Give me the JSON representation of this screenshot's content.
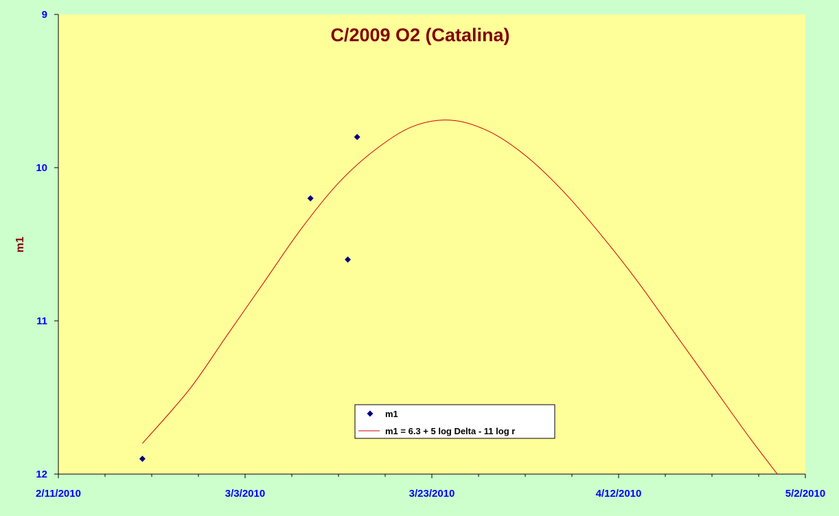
{
  "colors": {
    "background": "#ccffcc",
    "plot_area": "#ffff99",
    "title": "#800000",
    "axis_label": "#800000",
    "tick_label": "#0000ff",
    "marker": "#000080",
    "fit_line": "#cc0000"
  },
  "chart_data": {
    "type": "scatter",
    "title": "C/2009 O2 (Catalina)",
    "xlabel": "",
    "ylabel": "m1",
    "x_type": "date",
    "xlim": [
      "2010-02-11",
      "2010-05-02"
    ],
    "ylim": [
      9,
      12
    ],
    "y_inverted": true,
    "y_ticks": [
      "9",
      "10",
      "11",
      "12"
    ],
    "x_ticks": [
      "2/11/2010",
      "3/3/2010",
      "3/23/2010",
      "4/12/2010",
      "5/2/2010"
    ],
    "grid": false,
    "legend_position": "bottom-center",
    "series": [
      {
        "name": "m1",
        "kind": "points",
        "marker": "diamond",
        "points": [
          {
            "x": "2010-02-20",
            "y": 11.9
          },
          {
            "x": "2010-03-10",
            "y": 10.2
          },
          {
            "x": "2010-03-14",
            "y": 10.6
          },
          {
            "x": "2010-03-15",
            "y": 9.8
          }
        ]
      },
      {
        "name": "m1 = 6.3 + 5 log Delta - 11 log r",
        "kind": "line",
        "points": [
          {
            "x": "2010-02-20",
            "y": 11.8
          },
          {
            "x": "2010-02-25",
            "y": 11.45
          },
          {
            "x": "2010-03-01",
            "y": 11.1
          },
          {
            "x": "2010-03-05",
            "y": 10.75
          },
          {
            "x": "2010-03-09",
            "y": 10.4
          },
          {
            "x": "2010-03-13",
            "y": 10.1
          },
          {
            "x": "2010-03-17",
            "y": 9.88
          },
          {
            "x": "2010-03-21",
            "y": 9.73
          },
          {
            "x": "2010-03-25",
            "y": 9.69
          },
          {
            "x": "2010-03-29",
            "y": 9.76
          },
          {
            "x": "2010-04-02",
            "y": 9.92
          },
          {
            "x": "2010-04-06",
            "y": 10.15
          },
          {
            "x": "2010-04-10",
            "y": 10.43
          },
          {
            "x": "2010-04-14",
            "y": 10.74
          },
          {
            "x": "2010-04-18",
            "y": 11.08
          },
          {
            "x": "2010-04-22",
            "y": 11.42
          },
          {
            "x": "2010-04-26",
            "y": 11.76
          },
          {
            "x": "2010-04-29",
            "y": 12.0
          }
        ]
      }
    ]
  }
}
